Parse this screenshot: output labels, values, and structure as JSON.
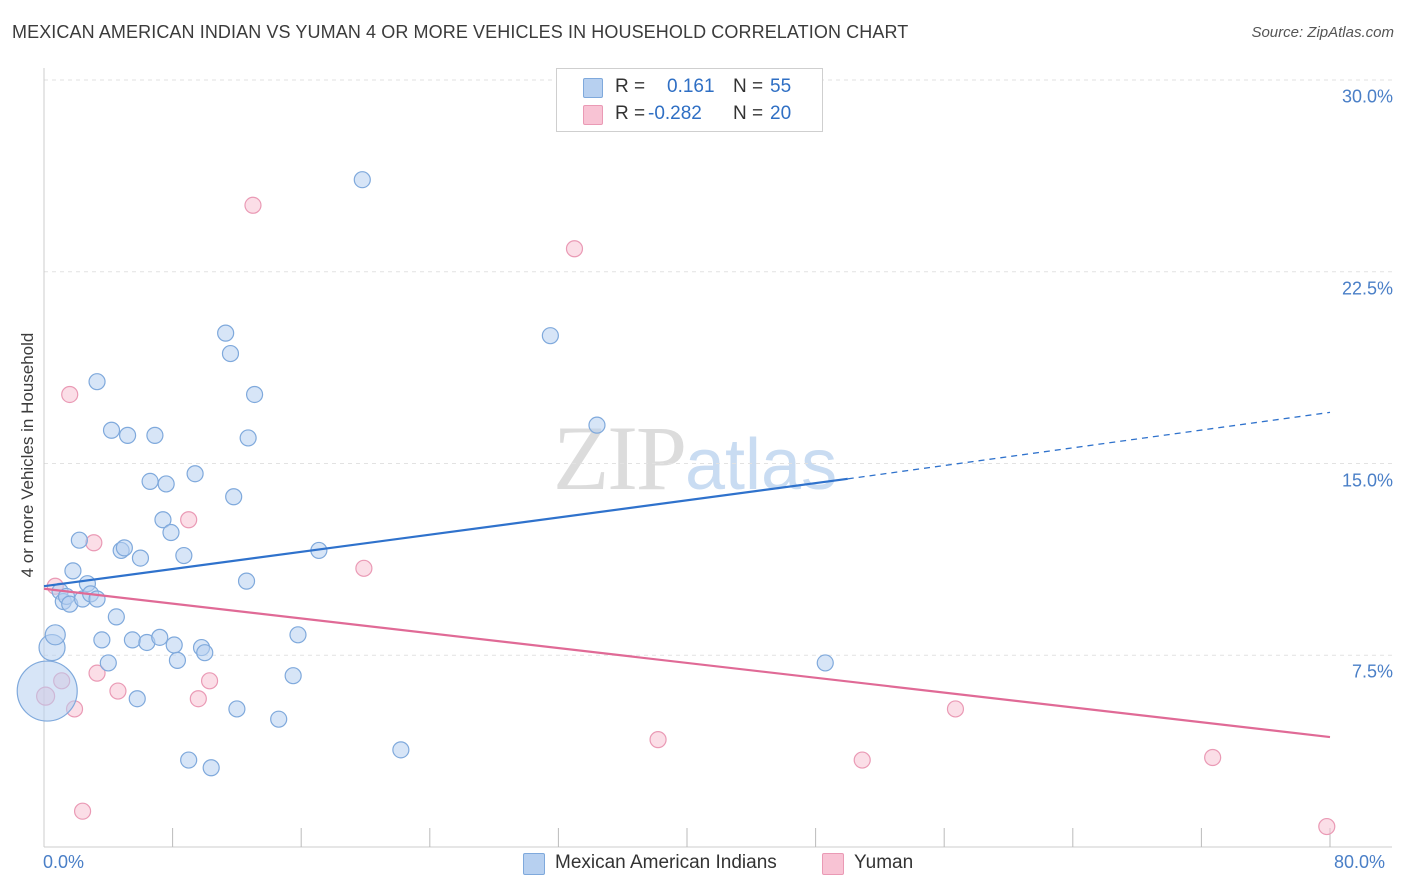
{
  "title": "MEXICAN AMERICAN INDIAN VS YUMAN 4 OR MORE VEHICLES IN HOUSEHOLD CORRELATION CHART",
  "source": "Source: ZipAtlas.com",
  "watermark": {
    "zip": "ZIP",
    "atlas": "atlas"
  },
  "legend": {
    "r_label": "R =",
    "n_label": "N =",
    "series1": {
      "r": "0.161",
      "n": "55"
    },
    "series2": {
      "r": "-0.282",
      "n": "20"
    }
  },
  "colors": {
    "blue_fill": "#b7d0f0",
    "blue_stroke": "#7fa9dc",
    "blue_line": "#2f72cc",
    "pink_fill": "#f8c3d4",
    "pink_stroke": "#ea9ab5",
    "pink_line": "#e06a96"
  },
  "chart_data": {
    "type": "scatter",
    "title": "MEXICAN AMERICAN INDIAN VS YUMAN 4 OR MORE VEHICLES IN HOUSEHOLD CORRELATION CHART",
    "xlabel": "",
    "ylabel": "4 or more Vehicles in Household",
    "xlim": [
      0,
      80
    ],
    "ylim": [
      0,
      30
    ],
    "x_tick_labels": [
      "0.0%",
      "80.0%"
    ],
    "y_ticks": [
      7.5,
      15.0,
      22.5,
      30.0
    ],
    "y_tick_labels": [
      "7.5%",
      "15.0%",
      "22.5%",
      "30.0%"
    ],
    "grid": true,
    "legend_position": "top-center",
    "series": [
      {
        "name": "Mexican American Indians",
        "color": "#b7d0f0",
        "r": 0.161,
        "n": 55,
        "trend": {
          "x0": 0,
          "y0": 10.2,
          "x1": 50,
          "y1": 14.4,
          "dashed_to_x": 80,
          "dashed_to_y": 17.0
        },
        "points": [
          [
            0.2,
            6.1,
            30
          ],
          [
            0.5,
            7.8,
            13
          ],
          [
            0.7,
            8.3,
            10
          ],
          [
            1.0,
            10.0,
            8
          ],
          [
            1.2,
            9.6,
            8
          ],
          [
            1.4,
            9.8,
            8
          ],
          [
            1.6,
            9.5,
            8
          ],
          [
            1.8,
            10.8,
            8
          ],
          [
            2.2,
            12.0,
            8
          ],
          [
            2.4,
            9.7,
            8
          ],
          [
            2.7,
            10.3,
            8
          ],
          [
            2.9,
            9.9,
            8
          ],
          [
            3.3,
            9.7,
            8
          ],
          [
            3.3,
            18.2,
            8
          ],
          [
            3.6,
            8.1,
            8
          ],
          [
            4.0,
            7.2,
            8
          ],
          [
            4.2,
            16.3,
            8
          ],
          [
            4.5,
            9.0,
            8
          ],
          [
            4.8,
            11.6,
            8
          ],
          [
            5.0,
            11.7,
            8
          ],
          [
            5.2,
            16.1,
            8
          ],
          [
            5.5,
            8.1,
            8
          ],
          [
            5.8,
            5.8,
            8
          ],
          [
            6.0,
            11.3,
            8
          ],
          [
            6.4,
            8.0,
            8
          ],
          [
            6.6,
            14.3,
            8
          ],
          [
            6.9,
            16.1,
            8
          ],
          [
            7.2,
            8.2,
            8
          ],
          [
            7.4,
            12.8,
            8
          ],
          [
            7.6,
            14.2,
            8
          ],
          [
            7.9,
            12.3,
            8
          ],
          [
            8.1,
            7.9,
            8
          ],
          [
            8.3,
            7.3,
            8
          ],
          [
            8.7,
            11.4,
            8
          ],
          [
            9.0,
            3.4,
            8
          ],
          [
            9.4,
            14.6,
            8
          ],
          [
            9.8,
            7.8,
            8
          ],
          [
            10.0,
            7.6,
            8
          ],
          [
            10.4,
            3.1,
            8
          ],
          [
            11.3,
            20.1,
            8
          ],
          [
            11.6,
            19.3,
            8
          ],
          [
            11.8,
            13.7,
            8
          ],
          [
            12.0,
            5.4,
            8
          ],
          [
            12.6,
            10.4,
            8
          ],
          [
            12.7,
            16.0,
            8
          ],
          [
            13.1,
            17.7,
            8
          ],
          [
            14.6,
            5.0,
            8
          ],
          [
            15.5,
            6.7,
            8
          ],
          [
            15.8,
            8.3,
            8
          ],
          [
            17.1,
            11.6,
            8
          ],
          [
            19.8,
            26.1,
            8
          ],
          [
            22.2,
            3.8,
            8
          ],
          [
            31.5,
            20.0,
            8
          ],
          [
            34.4,
            16.5,
            8
          ],
          [
            48.6,
            7.2,
            8
          ]
        ]
      },
      {
        "name": "Yuman",
        "color": "#f8c3d4",
        "r": -0.282,
        "n": 20,
        "trend": {
          "x0": 0,
          "y0": 10.1,
          "x1": 80,
          "y1": 4.3
        },
        "points": [
          [
            0.1,
            5.9,
            9
          ],
          [
            0.7,
            10.2,
            8
          ],
          [
            1.1,
            6.5,
            8
          ],
          [
            1.6,
            17.7,
            8
          ],
          [
            1.9,
            5.4,
            8
          ],
          [
            2.4,
            1.4,
            8
          ],
          [
            3.1,
            11.9,
            8
          ],
          [
            3.3,
            6.8,
            8
          ],
          [
            4.6,
            6.1,
            8
          ],
          [
            9.0,
            12.8,
            8
          ],
          [
            9.6,
            5.8,
            8
          ],
          [
            10.3,
            6.5,
            8
          ],
          [
            13.0,
            25.1,
            8
          ],
          [
            19.9,
            10.9,
            8
          ],
          [
            33.0,
            23.4,
            8
          ],
          [
            38.2,
            4.2,
            8
          ],
          [
            50.9,
            3.4,
            8
          ],
          [
            56.7,
            5.4,
            8
          ],
          [
            72.7,
            3.5,
            8
          ],
          [
            79.8,
            0.8,
            8
          ]
        ]
      }
    ]
  }
}
